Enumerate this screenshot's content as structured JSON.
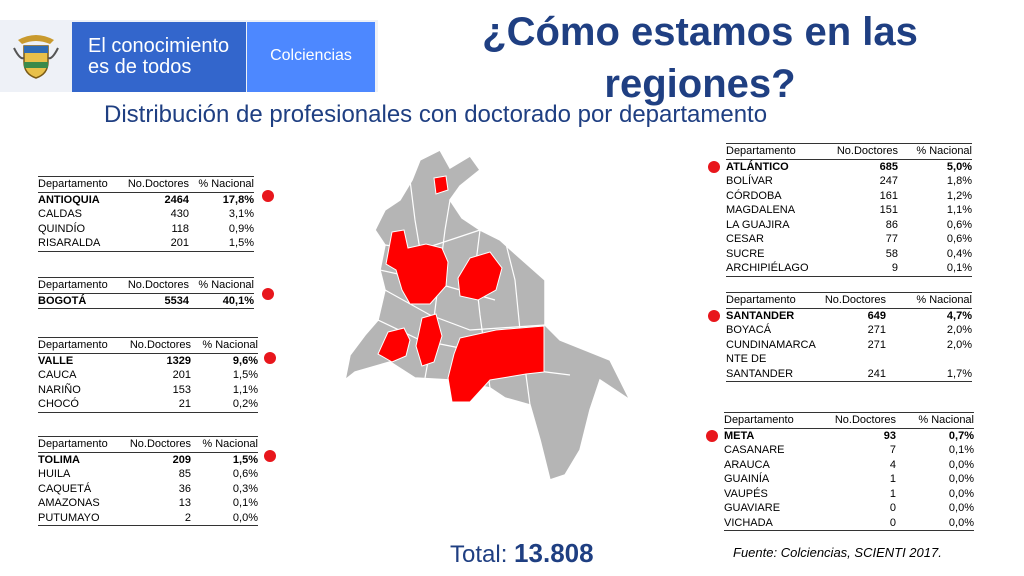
{
  "header": {
    "motto": "El conocimiento es de todos",
    "agency": "Colciencias",
    "title": "¿Cómo estamos en las regiones?",
    "subtitle": "Distribución de profesionales con doctorado por departamento"
  },
  "colors": {
    "highlight": "#e8161c",
    "map_gray": "#b5b5b5",
    "title_blue": "#1f3f82",
    "motto_blue": "#3366cc",
    "agency_blue": "#4d88ff"
  },
  "columns": {
    "dept": "Departamento",
    "doctors": "No.Doctores",
    "national": "% Nacional"
  },
  "tables": {
    "antioquia": [
      {
        "dept": "ANTIOQUIA",
        "doctors": "2464",
        "pct": "17,8%"
      },
      {
        "dept": "CALDAS",
        "doctors": "430",
        "pct": "3,1%"
      },
      {
        "dept": "QUINDÍO",
        "doctors": "118",
        "pct": "0,9%"
      },
      {
        "dept": "RISARALDA",
        "doctors": "201",
        "pct": "1,5%"
      }
    ],
    "bogota": [
      {
        "dept": "BOGOTÁ",
        "doctors": "5534",
        "pct": "40,1%"
      }
    ],
    "valle": [
      {
        "dept": "VALLE",
        "doctors": "1329",
        "pct": "9,6%"
      },
      {
        "dept": "CAUCA",
        "doctors": "201",
        "pct": "1,5%"
      },
      {
        "dept": "NARIÑO",
        "doctors": "153",
        "pct": "1,1%"
      },
      {
        "dept": "CHOCÓ",
        "doctors": "21",
        "pct": "0,2%"
      }
    ],
    "tolima": [
      {
        "dept": "TOLIMA",
        "doctors": "209",
        "pct": "1,5%"
      },
      {
        "dept": "HUILA",
        "doctors": "85",
        "pct": "0,6%"
      },
      {
        "dept": "CAQUETÁ",
        "doctors": "36",
        "pct": "0,3%"
      },
      {
        "dept": "AMAZONAS",
        "doctors": "13",
        "pct": "0,1%"
      },
      {
        "dept": "PUTUMAYO",
        "doctors": "2",
        "pct": "0,0%"
      }
    ],
    "atlantico": [
      {
        "dept": "ATLÁNTICO",
        "doctors": "685",
        "pct": "5,0%"
      },
      {
        "dept": "BOLÍVAR",
        "doctors": "247",
        "pct": "1,8%"
      },
      {
        "dept": "CÓRDOBA",
        "doctors": "161",
        "pct": "1,2%"
      },
      {
        "dept": "MAGDALENA",
        "doctors": "151",
        "pct": "1,1%"
      },
      {
        "dept": "LA GUAJIRA",
        "doctors": "86",
        "pct": "0,6%"
      },
      {
        "dept": "CESAR",
        "doctors": "77",
        "pct": "0,6%"
      },
      {
        "dept": "SUCRE",
        "doctors": "58",
        "pct": "0,4%"
      },
      {
        "dept": "ARCHIPIÉLAGO",
        "doctors": "9",
        "pct": "0,1%"
      }
    ],
    "santander": [
      {
        "dept": "SANTANDER",
        "doctors": "649",
        "pct": "4,7%"
      },
      {
        "dept": "BOYACÁ",
        "doctors": "271",
        "pct": "2,0%"
      },
      {
        "dept": "CUNDINAMARCA",
        "doctors": "271",
        "pct": "2,0%"
      },
      {
        "dept": "NTE DE",
        "doctors": "",
        "pct": ""
      },
      {
        "dept": "SANTANDER",
        "doctors": "241",
        "pct": "1,7%"
      }
    ],
    "meta": [
      {
        "dept": "META",
        "doctors": "93",
        "pct": "0,7%"
      },
      {
        "dept": "CASANARE",
        "doctors": "7",
        "pct": "0,1%"
      },
      {
        "dept": "ARAUCA",
        "doctors": "4",
        "pct": "0,0%"
      },
      {
        "dept": "GUAINÍA",
        "doctors": "1",
        "pct": "0,0%"
      },
      {
        "dept": "VAUPÉS",
        "doctors": "1",
        "pct": "0,0%"
      },
      {
        "dept": "GUAVIARE",
        "doctors": "0",
        "pct": "0,0%"
      },
      {
        "dept": "VICHADA",
        "doctors": "0",
        "pct": "0,0%"
      }
    ]
  },
  "total_label": "Total:",
  "total_value": "13.808",
  "source": "Fuente:  Colciencias, SCIENTI 2017."
}
